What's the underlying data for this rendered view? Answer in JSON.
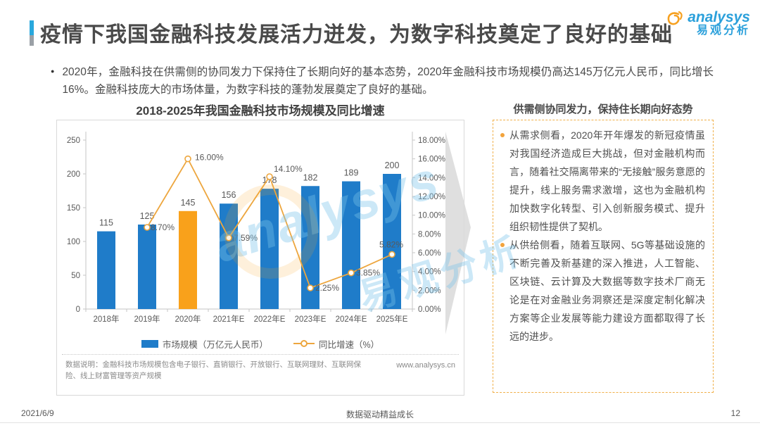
{
  "slide": {
    "title": "疫情下我国金融科技发展活力迸发，为数字科技奠定了良好的基础",
    "logo": {
      "brand": "analysys",
      "brand_cn": "易观分析"
    },
    "intro_bullet": "2020年，金融科技在供需侧的协同发力下保持住了长期向好的基本态势，2020年金融科技市场规模仍高达145万亿元人民币，同比增长16%。金融科技庞大的市场体量，为数字科技的蓬勃发展奠定了良好的基础。",
    "footer": {
      "date": "2021/6/9",
      "slogan": "数据驱动精益成长",
      "page": "12"
    }
  },
  "chart_data": {
    "type": "bar+line",
    "title": "2018-2025年我国金融科技市场规模及同比增速",
    "categories": [
      "2018年",
      "2019年",
      "2020年",
      "2021年E",
      "2022年E",
      "2023年E",
      "2024年E",
      "2025年E"
    ],
    "series": [
      {
        "name": "市场规模（万亿元人民币）",
        "type": "bar",
        "axis": "left",
        "values": [
          115,
          125,
          145,
          156,
          178,
          182,
          189,
          200
        ]
      },
      {
        "name": "同比增速（%）",
        "type": "line",
        "axis": "right",
        "values": [
          null,
          8.7,
          16.0,
          7.59,
          14.1,
          2.25,
          3.85,
          5.82
        ],
        "labels": [
          null,
          "8.70%",
          "16.00%",
          "7.59%",
          "14.10%",
          "2.25%",
          "3.85%",
          "5.82%"
        ]
      }
    ],
    "left_axis": {
      "min": 0,
      "max": 250,
      "step": 50,
      "ticks": [
        "0",
        "50",
        "100",
        "150",
        "200",
        "250"
      ]
    },
    "right_axis": {
      "min": 0,
      "max": 18,
      "step": 2,
      "ticks": [
        "0.00%",
        "2.00%",
        "4.00%",
        "6.00%",
        "8.00%",
        "10.00%",
        "12.00%",
        "14.00%",
        "16.00%",
        "18.00%"
      ]
    },
    "highlight_index": 2,
    "legend_position": "bottom",
    "grid": false,
    "colors": {
      "bar": "#1f7cc9",
      "bar_highlight": "#f9a11b",
      "line": "#eda63e",
      "axis": "#c6c6c6",
      "label": "#595959"
    }
  },
  "chart_note": {
    "text": "数据说明：金融科技市场规模包含电子银行、直销银行、开放银行、互联网理财、互联网保险、线上财富管理等资产规模",
    "source": "www.analysys.cn"
  },
  "right_panel": {
    "header": "供需侧协同发力，保持住长期向好态势",
    "bullets": [
      "从需求侧看，2020年开年爆发的新冠疫情虽对我国经济造成巨大挑战，但对金融机构而言，随着社交隔离带来的“无接触”服务意愿的提升，线上服务需求激增，这也为金融机构加快数字化转型、引入创新服务模式、提升组织韧性提供了契机。",
      "从供给侧看，随着互联网、5G等基础设施的不断完善及新基建的深入推进，人工智能、区块链、云计算及大数据等数字技术厂商无论是在对金融业务洞察还是深度定制化解决方案等企业发展等能力建设方面都取得了长远的进步。"
    ]
  },
  "watermark": {
    "text1": "analysys",
    "text2": "易观分析"
  }
}
